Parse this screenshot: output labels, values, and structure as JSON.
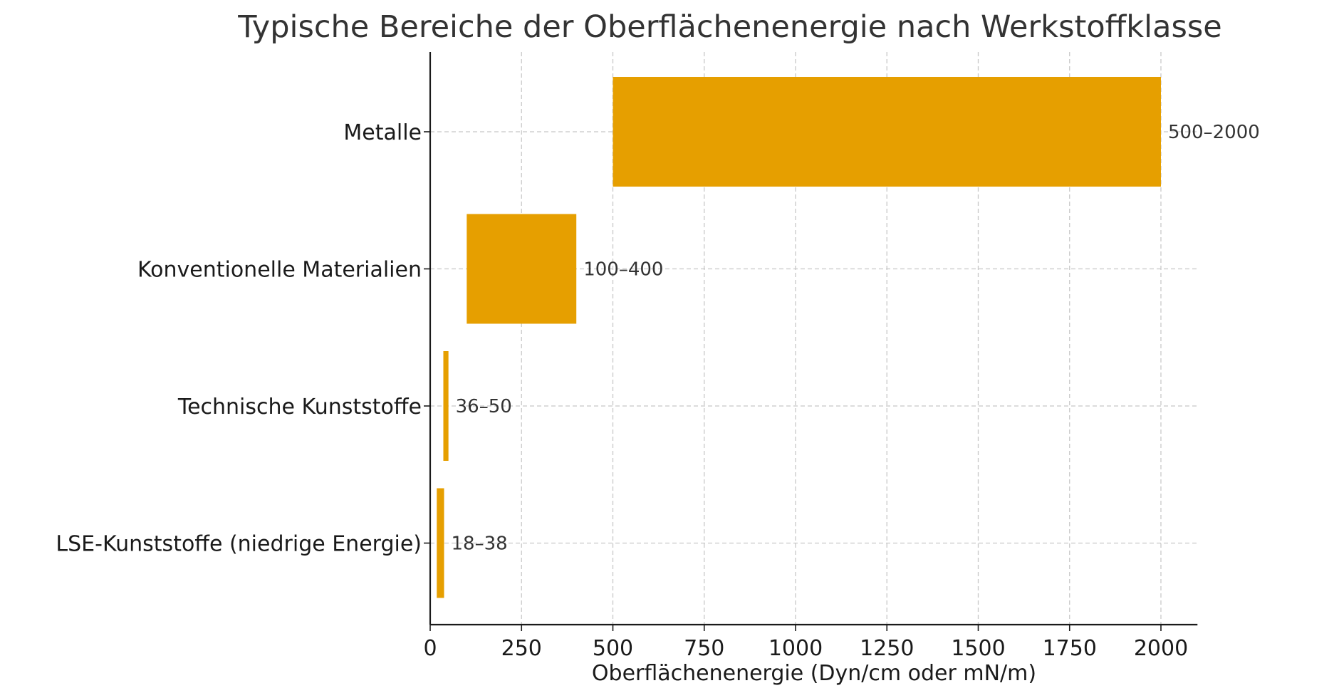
{
  "chart_data": {
    "type": "bar",
    "orientation": "horizontal",
    "title": "Typische Bereiche der Oberflächenenergie nach Werkstoffklasse",
    "xlabel": "Oberflächenenergie (Dyn/cm oder mN/m)",
    "ylabel": "",
    "xlim": [
      0,
      2100
    ],
    "xticks": [
      0,
      250,
      500,
      750,
      1000,
      1250,
      1500,
      1750,
      2000
    ],
    "xtick_labels": [
      "0",
      "250",
      "500",
      "750",
      "1000",
      "1250",
      "1500",
      "1750",
      "2000"
    ],
    "grid": true,
    "bar_color": "#E69F00",
    "categories": [
      "Metalle",
      "Konventionelle Materialien",
      "Technische Kunststoffe",
      "LSE-Kunststoffe (niedrige Energie)"
    ],
    "ranges": [
      {
        "start": 500,
        "end": 2000
      },
      {
        "start": 100,
        "end": 400
      },
      {
        "start": 36,
        "end": 50
      },
      {
        "start": 18,
        "end": 38
      }
    ],
    "data_labels": [
      "500–2000",
      "100–400",
      "36–50",
      "18–38"
    ]
  }
}
